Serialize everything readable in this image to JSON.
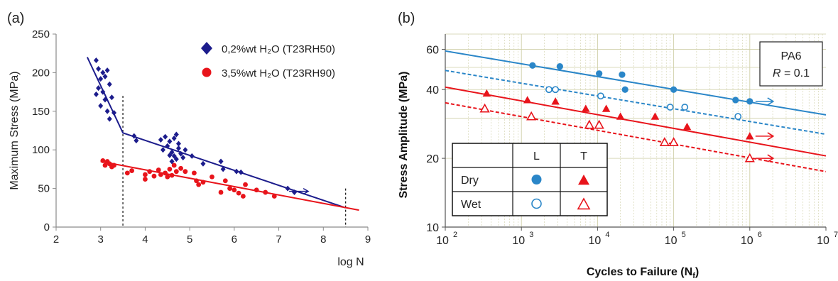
{
  "colors": {
    "navy": "#1c1c8c",
    "red_a": "#e8141b",
    "blue_b": "#2a86c8",
    "red_b": "#e8141b",
    "grid": "#cfcfa8",
    "axis": "#8a8a8a"
  },
  "chart_data": [
    {
      "panel_label": "(a)",
      "type": "scatter",
      "xlabel": "log N",
      "ylabel": "Maximum Stress (MPa)",
      "xlim": [
        2,
        9
      ],
      "ylim": [
        0,
        250
      ],
      "x_ticks": [
        "2",
        "3",
        "4",
        "5",
        "6",
        "7",
        "8",
        "9"
      ],
      "y_ticks": [
        "0",
        "50",
        "100",
        "150",
        "200",
        "250"
      ],
      "grid": false,
      "legend_placement": "top-right",
      "series": [
        {
          "name": "0,2%wt H₂O (T23RH50)",
          "marker": "diamond",
          "points": [
            [
              2.9,
              216
            ],
            [
              2.95,
              205
            ],
            [
              3.05,
              200
            ],
            [
              3.1,
              195
            ],
            [
              3.0,
              192
            ],
            [
              3.15,
              203
            ],
            [
              2.95,
              180
            ],
            [
              3.05,
              175
            ],
            [
              2.9,
              172
            ],
            [
              3.1,
              165
            ],
            [
              3.2,
              185
            ],
            [
              3.25,
              168
            ],
            [
              3.0,
              157
            ],
            [
              3.15,
              150
            ],
            [
              3.3,
              148
            ],
            [
              3.2,
              140
            ],
            [
              3.75,
              118
            ],
            [
              3.8,
              112
            ],
            [
              4.35,
              113
            ],
            [
              4.45,
              117
            ],
            [
              4.55,
              111
            ],
            [
              4.65,
              115
            ],
            [
              4.75,
              108
            ],
            [
              4.7,
              120
            ],
            [
              4.4,
              100
            ],
            [
              4.5,
              105
            ],
            [
              4.6,
              97
            ],
            [
              4.65,
              92
            ],
            [
              4.7,
              88
            ],
            [
              4.8,
              95
            ],
            [
              4.75,
              102
            ],
            [
              4.85,
              90
            ],
            [
              4.6,
              85
            ],
            [
              4.9,
              100
            ],
            [
              4.55,
              93
            ],
            [
              5.05,
              92
            ],
            [
              5.3,
              82
            ],
            [
              5.7,
              85
            ],
            [
              5.75,
              75
            ],
            [
              6.05,
              72
            ],
            [
              6.15,
              71
            ],
            [
              7.2,
              50
            ],
            [
              7.35,
              45
            ]
          ],
          "fit_line": [
            [
              2.7,
              220
            ],
            [
              3.5,
              122
            ],
            [
              8.5,
              25
            ]
          ]
        },
        {
          "name": "3,5%wt H₂O (T23RH90)",
          "marker": "circle",
          "points": [
            [
              3.05,
              86
            ],
            [
              3.15,
              85
            ],
            [
              3.1,
              80
            ],
            [
              3.2,
              82
            ],
            [
              3.25,
              78
            ],
            [
              3.3,
              80
            ],
            [
              3.6,
              70
            ],
            [
              3.7,
              73
            ],
            [
              4.0,
              68
            ],
            [
              4.1,
              72
            ],
            [
              4.0,
              62
            ],
            [
              4.2,
              66
            ],
            [
              4.3,
              74
            ],
            [
              4.35,
              68
            ],
            [
              4.45,
              70
            ],
            [
              4.55,
              75
            ],
            [
              4.6,
              67
            ],
            [
              4.7,
              72
            ],
            [
              4.5,
              65
            ],
            [
              4.65,
              80
            ],
            [
              4.8,
              76
            ],
            [
              4.9,
              72
            ],
            [
              5.1,
              70
            ],
            [
              5.15,
              60
            ],
            [
              5.2,
              55
            ],
            [
              5.3,
              58
            ],
            [
              5.5,
              65
            ],
            [
              5.7,
              45
            ],
            [
              5.8,
              60
            ],
            [
              5.9,
              50
            ],
            [
              6.0,
              48
            ],
            [
              6.1,
              44
            ],
            [
              6.2,
              40
            ],
            [
              6.25,
              55
            ],
            [
              6.5,
              48
            ],
            [
              6.7,
              45
            ],
            [
              6.9,
              40
            ]
          ],
          "fit_line": [
            [
              3.0,
              85
            ],
            [
              8.8,
              22
            ]
          ]
        }
      ],
      "annotations": [
        {
          "type": "dashed-vline",
          "x": 3.5,
          "y_range": [
            0,
            170
          ]
        },
        {
          "type": "dashed-vline",
          "x": 8.5,
          "y_range": [
            0,
            50
          ]
        },
        {
          "type": "runout-arrow",
          "x": 7.2,
          "y": 50
        }
      ]
    },
    {
      "panel_label": "(b)",
      "type": "scatter",
      "xlabel": "Cycles to Failure (Nf)",
      "xlabel_main": "Cycles to Failure (N",
      "xlabel_sub": "f",
      "xlabel_end": ")",
      "ylabel": "Stress Amplitude (MPa)",
      "x_scale": "log",
      "y_scale": "log",
      "xlim": [
        100,
        10000000
      ],
      "ylim": [
        10,
        70
      ],
      "x_ticks": [
        "10",
        "10",
        "10",
        "10",
        "10",
        "10"
      ],
      "x_tick_exponents": [
        "2",
        "3",
        "4",
        "5",
        "6",
        "7"
      ],
      "y_ticks": [
        "10",
        "20",
        "40",
        "60"
      ],
      "grid": true,
      "annotation_box": {
        "line1": "PA6",
        "line2_italic": "R",
        "line2_rest": " = 0.1"
      },
      "legend_table": {
        "col_headers": [
          "L",
          "T"
        ],
        "row_headers": [
          "Dry",
          "Wet"
        ]
      },
      "series": [
        {
          "condition": "Dry L",
          "marker": "filled-circle",
          "points": [
            [
              1400,
              51
            ],
            [
              3200,
              50.5
            ],
            [
              10500,
              47
            ],
            [
              21000,
              46.5
            ],
            [
              23000,
              40
            ],
            [
              100000,
              40
            ],
            [
              650000,
              36
            ],
            [
              1000000,
              35.5
            ]
          ],
          "runout": [
            [
              1000000,
              35.5
            ]
          ],
          "fit_line": [
            [
              100,
              59
            ],
            [
              10000000,
              31
            ]
          ],
          "dashed": false
        },
        {
          "condition": "Wet L",
          "marker": "open-circle",
          "points": [
            [
              2300,
              40
            ],
            [
              2800,
              40
            ],
            [
              11000,
              37.5
            ],
            [
              90000,
              33.5
            ],
            [
              140000,
              33.5
            ],
            [
              700000,
              30.5
            ]
          ],
          "fit_line": [
            [
              100,
              48.5
            ],
            [
              10000000,
              25.5
            ]
          ],
          "dashed": true
        },
        {
          "condition": "Dry T",
          "marker": "filled-triangle",
          "points": [
            [
              350,
              38.5
            ],
            [
              1200,
              36
            ],
            [
              2800,
              35.5
            ],
            [
              7000,
              33
            ],
            [
              13000,
              33
            ],
            [
              20000,
              30.5
            ],
            [
              57000,
              30.5
            ],
            [
              150000,
              27.5
            ],
            [
              1000000,
              25
            ]
          ],
          "runout": [
            [
              1000000,
              25
            ]
          ],
          "fit_line": [
            [
              100,
              41
            ],
            [
              10000000,
              20.5
            ]
          ],
          "dashed": false
        },
        {
          "condition": "Wet T",
          "marker": "open-triangle",
          "points": [
            [
              330,
              33
            ],
            [
              1350,
              30.5
            ],
            [
              7800,
              28
            ],
            [
              10500,
              28
            ],
            [
              76000,
              23.5
            ],
            [
              100000,
              23.5
            ],
            [
              1000000,
              20
            ]
          ],
          "runout": [
            [
              1000000,
              20
            ]
          ],
          "fit_line": [
            [
              100,
              35
            ],
            [
              10000000,
              17.5
            ]
          ],
          "dashed": true
        }
      ]
    }
  ]
}
